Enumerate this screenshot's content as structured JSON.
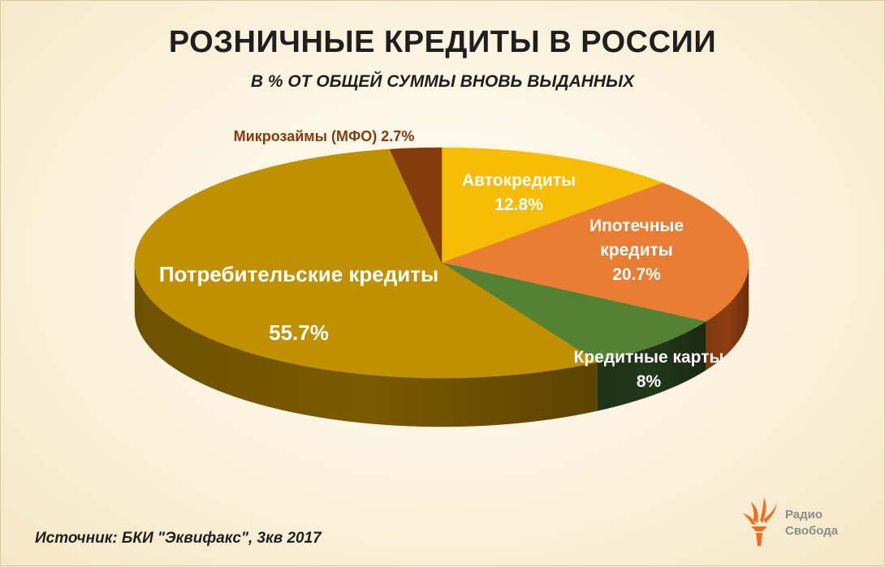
{
  "header": {
    "title": "РОЗНИЧНЫЕ КРЕДИТЫ В РОССИИ",
    "subtitle": "В % ОТ ОБЩЕЙ СУММЫ ВНОВЬ ВЫДАННЫХ"
  },
  "chart_data": {
    "type": "pie",
    "title": "РОЗНИЧНЫЕ КРЕДИТЫ В РОССИИ",
    "subtitle": "В % ОТ ОБЩЕЙ СУММЫ ВНОВЬ ВЫДАННЫХ",
    "three_d": true,
    "legend": "none",
    "slices": [
      {
        "label": "Автокредиты",
        "value": 12.8,
        "value_label": "12.8%",
        "color": "#f7bd04",
        "side_color": "#b98c02",
        "label_color": "#ffffff"
      },
      {
        "label": "Ипотечные кредиты",
        "label_lines": [
          "Ипотечные",
          "кредиты"
        ],
        "value": 20.7,
        "value_label": "20.7%",
        "color": "#e87d33",
        "side_color": "#8e3f12",
        "label_color": "#ffffff"
      },
      {
        "label": "Кредитные карты",
        "value": 8,
        "value_label": "8%",
        "color": "#548235",
        "side_color": "#22381a",
        "label_color": "#ffffff"
      },
      {
        "label": "Потребительские кредиты",
        "value": 55.7,
        "value_label": "55.7%",
        "color": "#bf9000",
        "side_color": "#7a5a00",
        "label_color": "#ffffff"
      },
      {
        "label": "Микрозаймы (МФО)",
        "value": 2.7,
        "value_label": "2.7%",
        "color": "#843c0c",
        "side_color": "#4f2206",
        "label_color": "#843c0c",
        "label_inline": "Микрозаймы (МФО) 2.7%"
      }
    ]
  },
  "footer": {
    "source": "Источник: БКИ \"Эквифакс\", 3кв 2017",
    "logo_line1": "Радио",
    "logo_line2": "Свобода",
    "logo_color": "#f26b21"
  }
}
